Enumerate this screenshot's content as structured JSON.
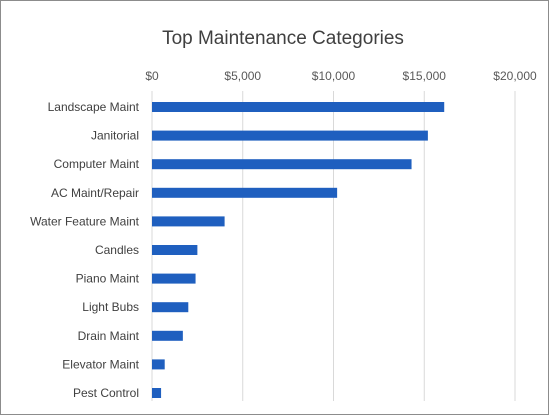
{
  "chart_data": {
    "type": "bar",
    "orientation": "horizontal",
    "title": "Top Maintenance Categories",
    "xlabel": "",
    "ylabel": "",
    "xlim": [
      0,
      20000
    ],
    "x_ticks": [
      "$0",
      "$5,000",
      "$10,000",
      "$15,000",
      "$20,000"
    ],
    "x_tick_values": [
      0,
      5000,
      10000,
      15000,
      20000
    ],
    "x_axis_position": "top",
    "grid": true,
    "legend": "none",
    "bar_color": "#1f5fbf",
    "grid_color": "#d9d9d9",
    "categories": [
      "Landscape Maint",
      "Janitorial",
      "Computer Maint",
      "AC Maint/Repair",
      "Water Feature Maint",
      "Candles",
      "Piano Maint",
      "Light Bubs",
      "Drain Maint",
      "Elevator Maint",
      "Pest Control"
    ],
    "values": [
      16100,
      15200,
      14300,
      10200,
      4000,
      2500,
      2400,
      2000,
      1700,
      700,
      500
    ]
  }
}
